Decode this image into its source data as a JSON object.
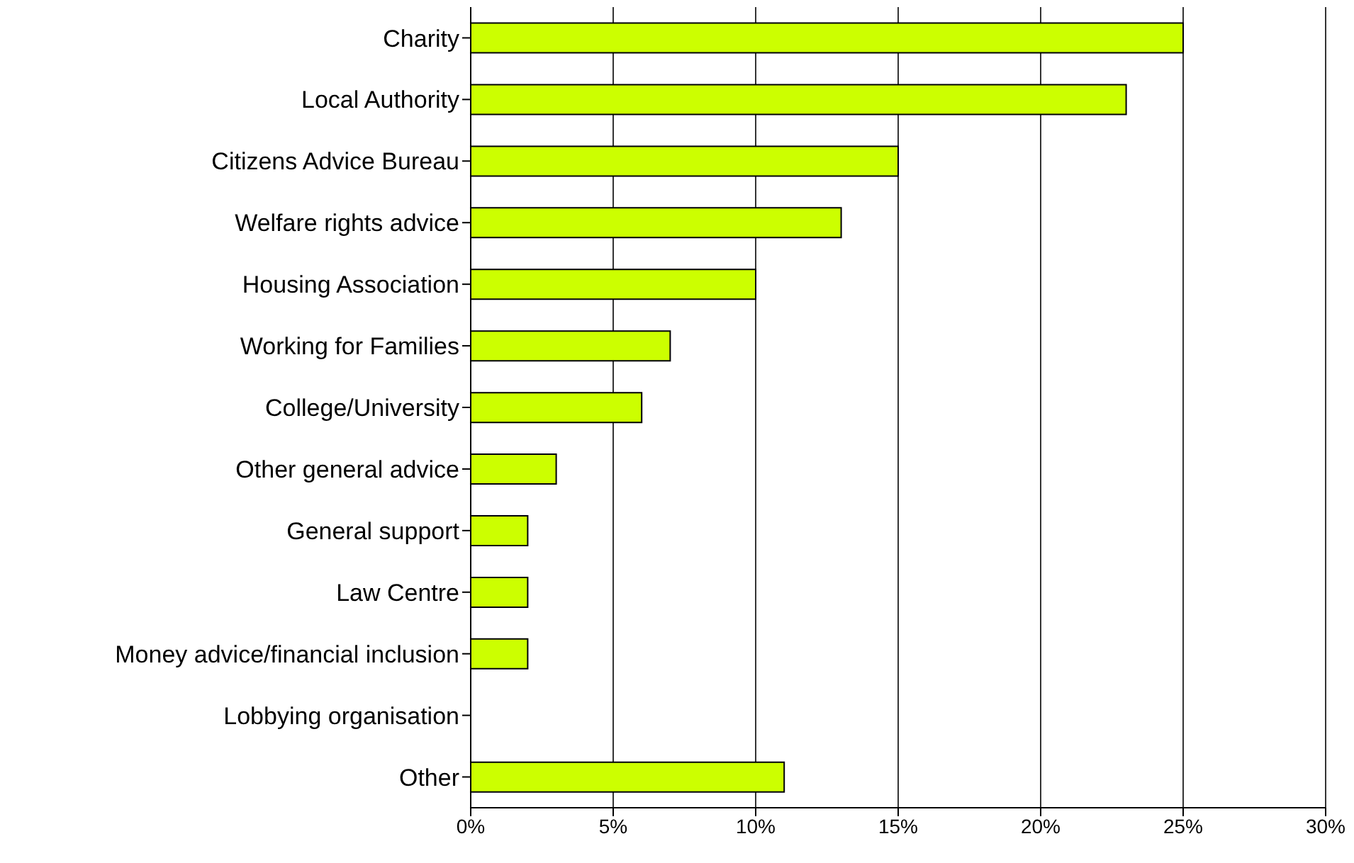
{
  "chart_data": {
    "type": "bar",
    "orientation": "horizontal",
    "categories": [
      "Charity",
      "Local Authority",
      "Citizens Advice Bureau",
      "Welfare rights advice",
      "Housing Association",
      "Working for Families",
      "College/University",
      "Other general advice",
      "General support",
      "Law Centre",
      "Money advice/financial inclusion",
      "Lobbying organisation",
      "Other"
    ],
    "values": [
      25,
      23,
      15,
      13,
      10,
      7,
      6,
      3,
      2,
      2,
      2,
      0,
      11
    ],
    "color": "#ccff00",
    "xlim": [
      0,
      30
    ],
    "xticks": [
      {
        "value": 0,
        "label": "0%"
      },
      {
        "value": 5,
        "label": "5%"
      },
      {
        "value": 10,
        "label": "10%"
      },
      {
        "value": 15,
        "label": "15%"
      },
      {
        "value": 20,
        "label": "20%"
      },
      {
        "value": 25,
        "label": "25%"
      },
      {
        "value": 30,
        "label": "30%"
      }
    ],
    "grid": "x",
    "legend": false
  }
}
